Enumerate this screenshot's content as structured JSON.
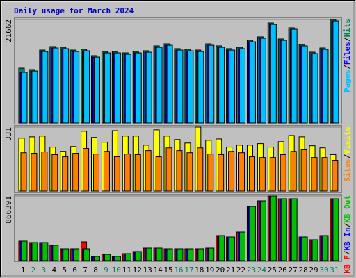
{
  "chart_data": [
    {
      "type": "bar",
      "title": "Daily usage for March 2024",
      "categories": [
        "1",
        "2",
        "3",
        "4",
        "5",
        "6",
        "7",
        "8",
        "9",
        "10",
        "11",
        "12",
        "13",
        "14",
        "15",
        "16",
        "17",
        "18",
        "19",
        "20",
        "21",
        "22",
        "23",
        "24",
        "25",
        "26",
        "27",
        "28",
        "29",
        "30",
        "31"
      ],
      "category_colors": [
        "#000000",
        "#00805c",
        "#00805c",
        "#000000",
        "#000000",
        "#000000",
        "#000000",
        "#000000",
        "#00805c",
        "#00805c",
        "#000000",
        "#000000",
        "#000000",
        "#000000",
        "#000000",
        "#00805c",
        "#00805c",
        "#000000",
        "#000000",
        "#000000",
        "#000000",
        "#000000",
        "#00805c",
        "#00805c",
        "#000000",
        "#000000",
        "#000000",
        "#000000",
        "#000000",
        "#00805c",
        "#00805c"
      ],
      "legend_separator": "/",
      "legend_reversed": true,
      "ylim": [
        0,
        21662
      ],
      "yticks": [
        21662
      ],
      "series": [
        {
          "name": "Hits",
          "color": "#00805c",
          "values": [
            11480,
            11190,
            15260,
            15990,
            15850,
            15260,
            15410,
            14100,
            14970,
            14970,
            14680,
            14970,
            15120,
            16140,
            16570,
            15560,
            15410,
            15260,
            16570,
            16140,
            15560,
            15850,
            17300,
            18030,
            20930,
            17590,
            19920,
            16430,
            14830,
            15700,
            21662
          ]
        },
        {
          "name": "Files",
          "color": "#0000ff",
          "values": [
            10610,
            10890,
            14960,
            15690,
            15550,
            14960,
            15110,
            13800,
            14670,
            14670,
            14380,
            14670,
            14820,
            15840,
            16270,
            15260,
            15110,
            14960,
            16270,
            15840,
            15260,
            15550,
            17000,
            17730,
            20630,
            17290,
            19620,
            16130,
            14530,
            15400,
            21360
          ]
        },
        {
          "name": "Pages",
          "color": "#00c0ff",
          "values": [
            10610,
            10890,
            14960,
            15690,
            15550,
            14960,
            15110,
            13800,
            14670,
            14670,
            14380,
            14670,
            14820,
            15840,
            16270,
            15260,
            15110,
            14960,
            16270,
            15840,
            15260,
            15550,
            17000,
            17730,
            20630,
            17290,
            19620,
            16130,
            14530,
            15400,
            21360
          ]
        }
      ]
    },
    {
      "type": "bar",
      "legend_reversed": true,
      "ylim": [
        0,
        331
      ],
      "yticks": [
        331
      ],
      "series": [
        {
          "name": "Visits",
          "color": "#ffff00",
          "values": [
            274,
            281,
            285,
            228,
            206,
            231,
            310,
            278,
            253,
            313,
            285,
            285,
            238,
            317,
            285,
            267,
            249,
            331,
            263,
            270,
            228,
            238,
            238,
            246,
            228,
            256,
            288,
            281,
            235,
            224,
            189
          ]
        },
        {
          "name": "Sites",
          "color": "#ff8000",
          "values": [
            199,
            196,
            203,
            189,
            178,
            196,
            221,
            192,
            206,
            178,
            192,
            189,
            210,
            178,
            224,
            210,
            199,
            224,
            192,
            189,
            206,
            199,
            178,
            174,
            174,
            189,
            206,
            214,
            174,
            174,
            160
          ]
        }
      ]
    },
    {
      "type": "bar",
      "legend_reversed": false,
      "ylim": [
        0,
        866391
      ],
      "yticks": [
        866391
      ],
      "series": [
        {
          "name": "KB F",
          "color": "#ff0000",
          "values": [
            260850,
            242220,
            242220,
            204950,
            158370,
            158370,
            251530,
            55900,
            83840,
            55900,
            93160,
            121110,
            167690,
            167690,
            158370,
            158370,
            158370,
            158370,
            167690,
            335380,
            316740,
            381960,
            726650,
            801180,
            866391,
            829120,
            829120,
            316740,
            279480,
            335380,
            829120
          ]
        },
        {
          "name": "KB In",
          "color": "#0000ff",
          "values": [
            260850,
            242220,
            242220,
            204950,
            158370,
            158370,
            158370,
            55900,
            83840,
            55900,
            93160,
            121110,
            167690,
            167690,
            158370,
            158370,
            158370,
            158370,
            167690,
            335380,
            316740,
            381960,
            726650,
            801180,
            866391,
            829120,
            829120,
            316740,
            279480,
            335380,
            829120
          ]
        },
        {
          "name": "KB Out",
          "color": "#00c000",
          "values": [
            260850,
            242220,
            242220,
            204950,
            158370,
            158370,
            158370,
            55900,
            83840,
            55900,
            93160,
            121110,
            167690,
            167690,
            158370,
            158370,
            158370,
            158370,
            167690,
            335380,
            316740,
            381960,
            726650,
            801180,
            866391,
            829120,
            829120,
            316740,
            279480,
            335380,
            829120
          ]
        }
      ]
    }
  ]
}
